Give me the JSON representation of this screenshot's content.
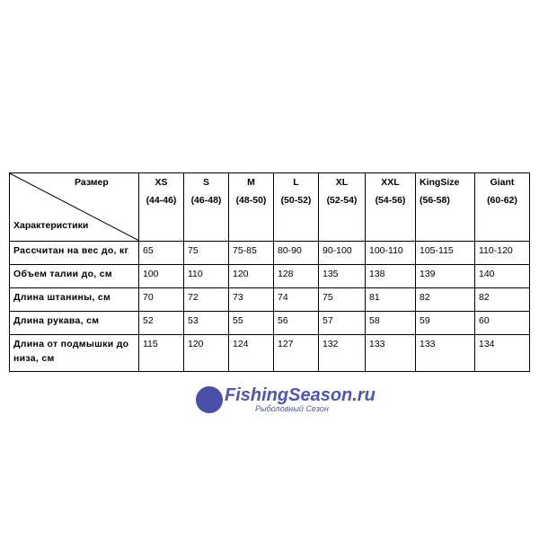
{
  "corner": {
    "top": "Размер",
    "bottom": "Характеристики"
  },
  "sizes": [
    {
      "name": "XS",
      "range": "(44-46)"
    },
    {
      "name": "S",
      "range": "(46-48)"
    },
    {
      "name": "M",
      "range": "(48-50)"
    },
    {
      "name": "L",
      "range": "(50-52)"
    },
    {
      "name": "XL",
      "range": "(52-54)"
    },
    {
      "name": "XXL",
      "range": "(54-56)"
    },
    {
      "name": "KingSize",
      "range": "(56-58)"
    },
    {
      "name": "Giant",
      "range": "(60-62)"
    }
  ],
  "rows": [
    {
      "label": "Рассчитан на вес до, кг",
      "values": [
        " 65",
        "75",
        "75-85",
        "80-90",
        "90-100",
        "100-110",
        "105-115",
        "110-120"
      ]
    },
    {
      "label": "Объем талии до, см",
      "values": [
        "100",
        "110",
        "120",
        "128",
        "135",
        "138",
        "139",
        "140"
      ]
    },
    {
      "label": "Длина штанины, см",
      "values": [
        "70",
        "72",
        "73",
        "74",
        "75",
        "81",
        "82",
        "82"
      ]
    },
    {
      "label": "Длина рукава, см",
      "values": [
        "52",
        "53",
        "55",
        "56",
        "57",
        "58",
        "59",
        "60"
      ]
    },
    {
      "label": "Длина от подмышки до низа, см",
      "values": [
        "115",
        "120",
        "124",
        "127",
        "132",
        "133",
        "133",
        "134"
      ]
    }
  ],
  "watermark": {
    "title": "FishingSeason.ru",
    "subtitle": "Рыболовный Сезон",
    "color": "#4d55b5"
  }
}
